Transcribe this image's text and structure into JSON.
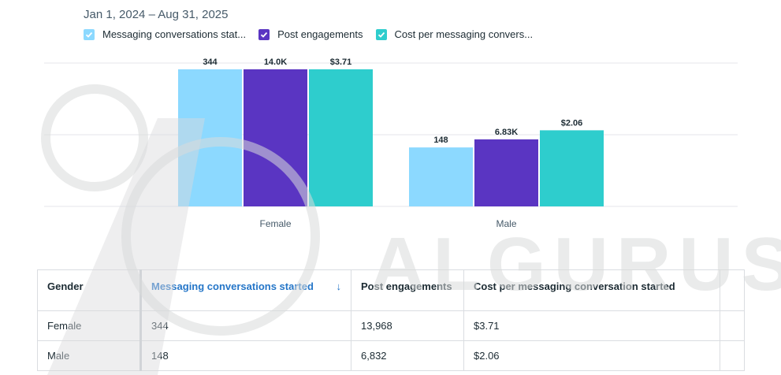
{
  "date_range": "Jan 1, 2024 – Aug 31, 2025",
  "legend": [
    {
      "label": "Messaging conversations stat...",
      "color": "#8cd9ff"
    },
    {
      "label": "Post engagements",
      "color": "#5a35c2"
    },
    {
      "label": "Cost per messaging convers...",
      "color": "#2ecdcd"
    }
  ],
  "chart_data": {
    "type": "bar",
    "categories": [
      "Female",
      "Male"
    ],
    "series": [
      {
        "name": "Messaging conversations stat...",
        "values": [
          344,
          148
        ],
        "labels": [
          "344",
          "148"
        ],
        "color": "#8cd9ff"
      },
      {
        "name": "Post engagements",
        "values": [
          13968,
          6832
        ],
        "labels": [
          "14.0K",
          "6.83K"
        ],
        "color": "#5a35c2"
      },
      {
        "name": "Cost per messaging convers...",
        "values": [
          3.71,
          2.06
        ],
        "labels": [
          "$3.71",
          "$2.06"
        ],
        "color": "#2ecdcd"
      }
    ],
    "grid": true,
    "legend": "top-left"
  },
  "table": {
    "headers": [
      "Gender",
      "Messaging conversations started",
      "Post engagements",
      "Cost per messaging conversation started"
    ],
    "sort_icon": "arrow-down-icon",
    "sort_arrow": "↓",
    "rows": [
      [
        "Female",
        "344",
        "13,968",
        "$3.71"
      ],
      [
        "Male",
        "148",
        "6,832",
        "$2.06"
      ]
    ]
  },
  "watermark": "ALGURUS"
}
